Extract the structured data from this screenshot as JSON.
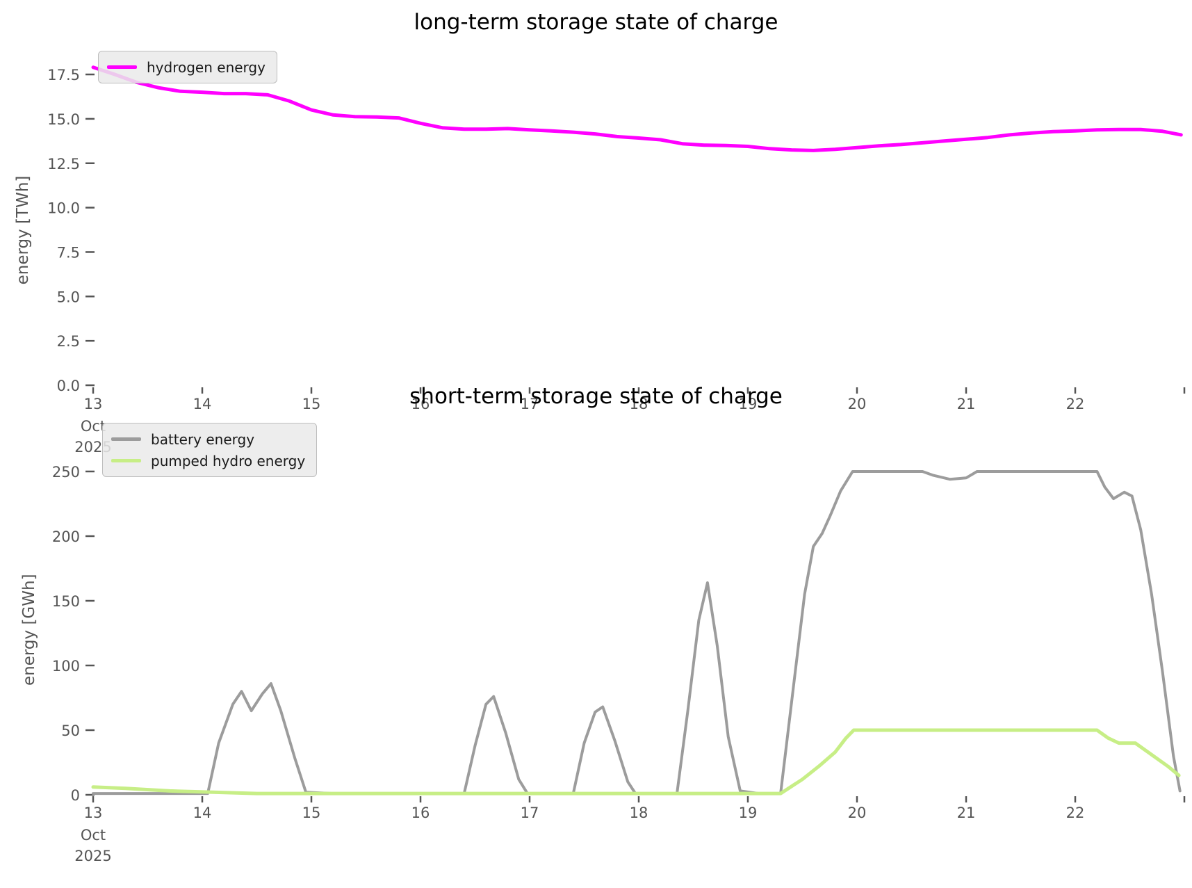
{
  "page_background": "#ffffff",
  "text_color": "#555555",
  "title_color": "#000000",
  "chart_data": [
    {
      "type": "line",
      "title": "long-term storage state of charge",
      "xlabel": "",
      "ylabel": "energy [TWh]",
      "x_axis": {
        "tick_labels": [
          "13",
          "14",
          "15",
          "16",
          "17",
          "18",
          "19",
          "20",
          "21",
          "22"
        ],
        "tick_values": [
          13,
          14,
          15,
          16,
          17,
          18,
          19,
          20,
          21,
          22
        ],
        "end_tick_value": 23,
        "first_tick_sub_labels": [
          "Oct",
          "2025"
        ],
        "range": [
          13,
          23
        ]
      },
      "y_axis": {
        "tick_labels": [
          "0.0",
          "2.5",
          "5.0",
          "7.5",
          "10.0",
          "12.5",
          "15.0",
          "17.5"
        ],
        "tick_values": [
          0,
          2.5,
          5,
          7.5,
          10,
          12.5,
          15,
          17.5
        ],
        "range": [
          0,
          18.7
        ]
      },
      "grid": false,
      "legend_position": "upper left",
      "series": [
        {
          "name": "hydrogen energy",
          "color": "#ff00ff",
          "line_width": 5,
          "points": [
            [
              13.0,
              17.9
            ],
            [
              13.2,
              17.5
            ],
            [
              13.4,
              17.05
            ],
            [
              13.6,
              16.75
            ],
            [
              13.8,
              16.55
            ],
            [
              14.0,
              16.5
            ],
            [
              14.2,
              16.42
            ],
            [
              14.4,
              16.42
            ],
            [
              14.6,
              16.35
            ],
            [
              14.8,
              16.0
            ],
            [
              15.0,
              15.5
            ],
            [
              15.2,
              15.22
            ],
            [
              15.4,
              15.12
            ],
            [
              15.6,
              15.1
            ],
            [
              15.8,
              15.05
            ],
            [
              16.0,
              14.75
            ],
            [
              16.2,
              14.5
            ],
            [
              16.4,
              14.42
            ],
            [
              16.6,
              14.42
            ],
            [
              16.8,
              14.45
            ],
            [
              17.0,
              14.38
            ],
            [
              17.2,
              14.32
            ],
            [
              17.4,
              14.25
            ],
            [
              17.6,
              14.15
            ],
            [
              17.8,
              14.0
            ],
            [
              18.0,
              13.92
            ],
            [
              18.2,
              13.82
            ],
            [
              18.4,
              13.6
            ],
            [
              18.6,
              13.52
            ],
            [
              18.8,
              13.5
            ],
            [
              19.0,
              13.45
            ],
            [
              19.2,
              13.32
            ],
            [
              19.4,
              13.25
            ],
            [
              19.6,
              13.22
            ],
            [
              19.8,
              13.28
            ],
            [
              20.0,
              13.38
            ],
            [
              20.2,
              13.48
            ],
            [
              20.4,
              13.55
            ],
            [
              20.6,
              13.65
            ],
            [
              20.8,
              13.75
            ],
            [
              21.0,
              13.85
            ],
            [
              21.2,
              13.95
            ],
            [
              21.4,
              14.1
            ],
            [
              21.6,
              14.2
            ],
            [
              21.8,
              14.28
            ],
            [
              22.0,
              14.32
            ],
            [
              22.2,
              14.38
            ],
            [
              22.4,
              14.4
            ],
            [
              22.6,
              14.4
            ],
            [
              22.8,
              14.3
            ],
            [
              22.97,
              14.1
            ]
          ]
        }
      ]
    },
    {
      "type": "line",
      "title": "short-term storage state of charge",
      "xlabel": "",
      "ylabel": "energy [GWh]",
      "x_axis": {
        "tick_labels": [
          "13",
          "14",
          "15",
          "16",
          "17",
          "18",
          "19",
          "20",
          "21",
          "22"
        ],
        "tick_values": [
          13,
          14,
          15,
          16,
          17,
          18,
          19,
          20,
          21,
          22
        ],
        "end_tick_value": 23,
        "first_tick_sub_labels": [
          "Oct",
          "2025"
        ],
        "range": [
          13,
          23
        ]
      },
      "y_axis": {
        "tick_labels": [
          "0",
          "50",
          "100",
          "150",
          "200",
          "250"
        ],
        "tick_values": [
          0,
          50,
          100,
          150,
          200,
          250
        ],
        "range": [
          0,
          255
        ]
      },
      "grid": false,
      "legend_position": "upper left",
      "series": [
        {
          "name": "battery energy",
          "color": "#9c9c9c",
          "line_width": 4,
          "points": [
            [
              13.0,
              1
            ],
            [
              13.5,
              1
            ],
            [
              14.05,
              1
            ],
            [
              14.15,
              40
            ],
            [
              14.28,
              70
            ],
            [
              14.36,
              80
            ],
            [
              14.45,
              65
            ],
            [
              14.55,
              78
            ],
            [
              14.63,
              86
            ],
            [
              14.72,
              65
            ],
            [
              14.85,
              28
            ],
            [
              14.95,
              2
            ],
            [
              15.2,
              1
            ],
            [
              16.4,
              1
            ],
            [
              16.5,
              38
            ],
            [
              16.6,
              70
            ],
            [
              16.67,
              76
            ],
            [
              16.78,
              48
            ],
            [
              16.9,
              12
            ],
            [
              16.98,
              1
            ],
            [
              17.4,
              1
            ],
            [
              17.5,
              40
            ],
            [
              17.6,
              64
            ],
            [
              17.67,
              68
            ],
            [
              17.78,
              42
            ],
            [
              17.9,
              10
            ],
            [
              17.97,
              1
            ],
            [
              18.35,
              1
            ],
            [
              18.45,
              65
            ],
            [
              18.55,
              135
            ],
            [
              18.63,
              164
            ],
            [
              18.72,
              115
            ],
            [
              18.82,
              45
            ],
            [
              18.93,
              3
            ],
            [
              19.1,
              1
            ],
            [
              19.3,
              1
            ],
            [
              19.42,
              85
            ],
            [
              19.52,
              155
            ],
            [
              19.6,
              192
            ],
            [
              19.68,
              202
            ],
            [
              19.75,
              215
            ],
            [
              19.85,
              235
            ],
            [
              19.96,
              250
            ],
            [
              20.3,
              250
            ],
            [
              20.6,
              250
            ],
            [
              20.7,
              247
            ],
            [
              20.85,
              244
            ],
            [
              21.0,
              245
            ],
            [
              21.1,
              250
            ],
            [
              21.6,
              250
            ],
            [
              22.0,
              250
            ],
            [
              22.2,
              250
            ],
            [
              22.27,
              238
            ],
            [
              22.35,
              229
            ],
            [
              22.45,
              234
            ],
            [
              22.52,
              231
            ],
            [
              22.6,
              205
            ],
            [
              22.7,
              155
            ],
            [
              22.8,
              95
            ],
            [
              22.9,
              30
            ],
            [
              22.96,
              3
            ]
          ]
        },
        {
          "name": "pumped hydro energy",
          "color": "#c7ee86",
          "line_width": 5,
          "points": [
            [
              13.0,
              6
            ],
            [
              13.3,
              5
            ],
            [
              13.7,
              3
            ],
            [
              14.1,
              2
            ],
            [
              14.5,
              1
            ],
            [
              15.0,
              1
            ],
            [
              16.0,
              1
            ],
            [
              17.0,
              1
            ],
            [
              18.0,
              1
            ],
            [
              19.0,
              1
            ],
            [
              19.3,
              1
            ],
            [
              19.5,
              12
            ],
            [
              19.65,
              22
            ],
            [
              19.8,
              33
            ],
            [
              19.9,
              44
            ],
            [
              19.97,
              50
            ],
            [
              20.5,
              50
            ],
            [
              21.0,
              50
            ],
            [
              21.5,
              50
            ],
            [
              22.0,
              50
            ],
            [
              22.2,
              50
            ],
            [
              22.3,
              44
            ],
            [
              22.4,
              40
            ],
            [
              22.55,
              40
            ],
            [
              22.7,
              31
            ],
            [
              22.85,
              22
            ],
            [
              22.95,
              15
            ]
          ]
        }
      ]
    }
  ]
}
